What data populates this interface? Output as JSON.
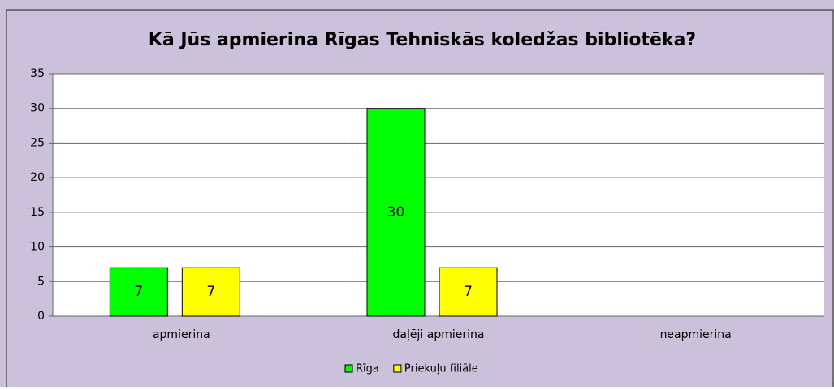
{
  "chart_data": {
    "type": "bar",
    "title": "Kā Jūs apmierina Rīgas Tehniskās koledžas bibliotēka?",
    "categories": [
      "apmierina",
      "daļēji apmierina",
      "neapmierina"
    ],
    "series": [
      {
        "name": "Rīga",
        "color": "#00ff00",
        "values": [
          7,
          30,
          null
        ]
      },
      {
        "name": "Priekuļu filiāle",
        "color": "#ffff00",
        "values": [
          7,
          7,
          null
        ]
      }
    ],
    "ylim": [
      0,
      35
    ],
    "yticks": [
      0,
      5,
      10,
      15,
      20,
      25,
      30,
      35
    ],
    "grid": true,
    "legend": "bottom"
  }
}
